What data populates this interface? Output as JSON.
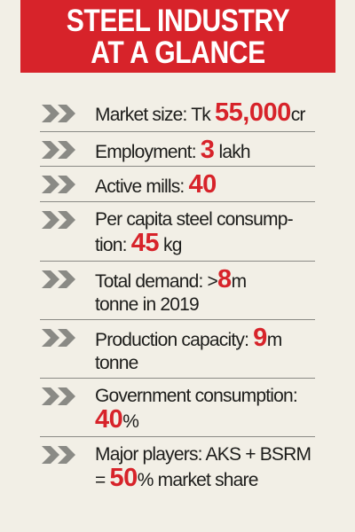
{
  "header": {
    "title_line1": "STEEL INDUSTRY",
    "title_line2": "AT A GLANCE"
  },
  "colors": {
    "accent": "#d7232a",
    "background": "#f2efe6",
    "chevron": "#8a8a85"
  },
  "items": [
    {
      "icon": "double-chevron-right-icon",
      "label": "Market size: Tk ",
      "value": "55,000",
      "unit": "cr"
    },
    {
      "icon": "double-chevron-right-icon",
      "label": "Employment: ",
      "value": "3",
      "unit": " lakh"
    },
    {
      "icon": "double-chevron-right-icon",
      "label": "Active mills: ",
      "value": "40",
      "unit": ""
    },
    {
      "icon": "double-chevron-right-icon",
      "label": "Per capita steel consump-tion: ",
      "value": "45",
      "unit": " kg"
    },
    {
      "icon": "double-chevron-right-icon",
      "label": "Total demand: >",
      "value": "8",
      "unit": "m tonne in 2019"
    },
    {
      "icon": "double-chevron-right-icon",
      "label": "Production capacity: ",
      "value": "9",
      "unit": "m tonne"
    },
    {
      "icon": "double-chevron-right-icon",
      "label": "Government consumption: ",
      "value": "40",
      "unit": "%"
    },
    {
      "icon": "double-chevron-right-icon",
      "label": "Major players: AKS + BSRM = ",
      "value": "50",
      "unit": "% market share"
    }
  ]
}
